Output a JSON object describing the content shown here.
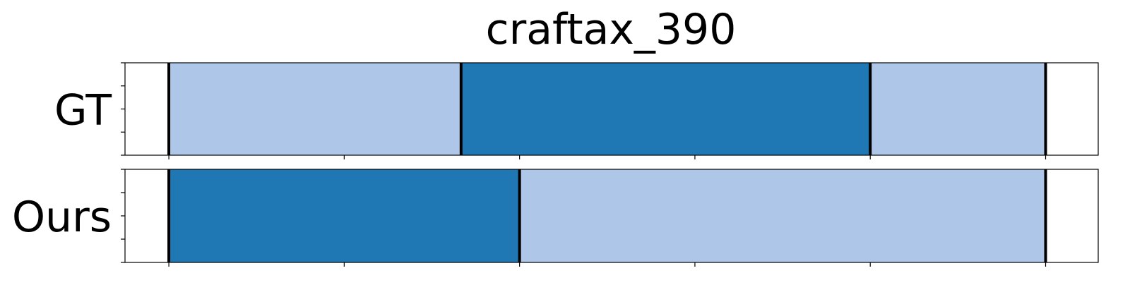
{
  "chart_data": {
    "type": "bar",
    "title": "craftax_390",
    "xlim": [
      -5,
      106
    ],
    "rows": [
      {
        "label": "GT",
        "segments": [
          {
            "start": 0,
            "end": 33.33,
            "color": "#aec7e8"
          },
          {
            "start": 33.33,
            "end": 80,
            "color": "#1f77b4"
          },
          {
            "start": 80,
            "end": 100,
            "color": "#aec7e8"
          }
        ],
        "boundaries": [
          0,
          33.33,
          80,
          100
        ]
      },
      {
        "label": "Ours",
        "segments": [
          {
            "start": 0,
            "end": 40,
            "color": "#1f77b4"
          },
          {
            "start": 40,
            "end": 100,
            "color": "#aec7e8"
          }
        ],
        "boundaries": [
          0,
          40,
          100
        ]
      }
    ],
    "x_ticks": [
      0,
      20,
      40,
      60,
      80,
      100
    ],
    "show_tick_labels": false,
    "grid": false,
    "legend": "none"
  }
}
